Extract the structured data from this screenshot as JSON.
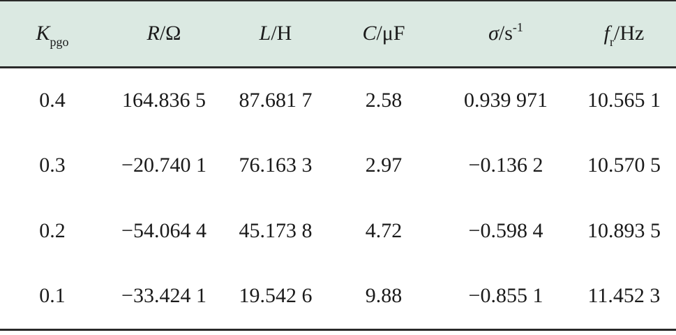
{
  "table": {
    "headers": [
      {
        "symbol": "K",
        "sub": "pgo",
        "unit": "",
        "sup": ""
      },
      {
        "symbol": "R",
        "sub": "",
        "unit": "/Ω",
        "sup": ""
      },
      {
        "symbol": "L",
        "sub": "",
        "unit": "/H",
        "sup": ""
      },
      {
        "symbol": "C",
        "sub": "",
        "unit": "/μF",
        "sup": ""
      },
      {
        "symbol": "σ",
        "sub": "",
        "unit": "/s",
        "sup": "-1"
      },
      {
        "symbol": "f",
        "sub": "r",
        "unit": "/Hz",
        "sup": ""
      }
    ],
    "rows": [
      [
        "0.4",
        "164.836 5",
        "87.681 7",
        "2.58",
        "0.939 971",
        "10.565 1"
      ],
      [
        "0.3",
        "−20.740 1",
        "76.163 3",
        "2.97",
        "−0.136 2",
        "10.570 5"
      ],
      [
        "0.2",
        "−54.064 4",
        "45.173 8",
        "4.72",
        "−0.598 4",
        "10.893 5"
      ],
      [
        "0.1",
        "−33.424 1",
        "19.542 6",
        "9.88",
        "−0.855 1",
        "11.452 3"
      ]
    ]
  }
}
